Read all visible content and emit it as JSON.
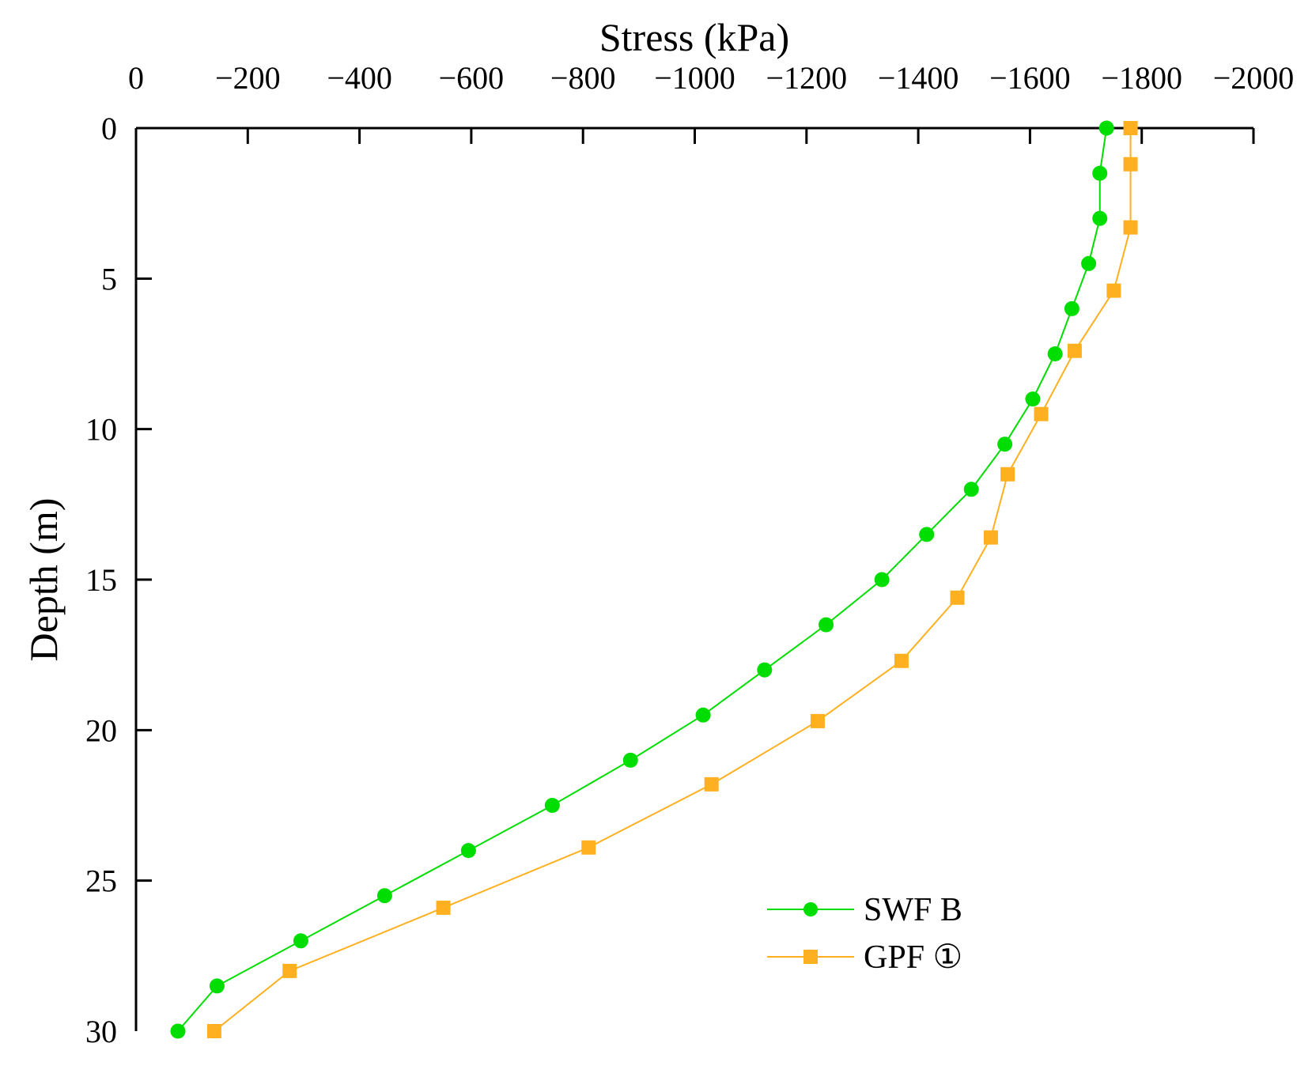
{
  "chart_data": {
    "type": "line",
    "title": "",
    "xlabel": "Stress (kPa)",
    "ylabel": "Depth (m)",
    "x_axis_position": "top",
    "y_axis_inverted": true,
    "xlim": [
      0,
      -2000
    ],
    "ylim": [
      0,
      30
    ],
    "xticks": [
      0,
      -200,
      -400,
      -600,
      -800,
      -1000,
      -1200,
      -1400,
      -1600,
      -1800,
      -2000
    ],
    "xtick_labels": [
      "0",
      "−200",
      "−400",
      "−600",
      "−800",
      "−1000",
      "−1200",
      "−1400",
      "−1600",
      "−1800",
      "−2000"
    ],
    "yticks": [
      0,
      5,
      10,
      15,
      20,
      25,
      30
    ],
    "ytick_labels": [
      "0",
      "5",
      "10",
      "15",
      "20",
      "25",
      "30"
    ],
    "grid": false,
    "legend_position": "bottom-right",
    "series": [
      {
        "name": "SWF B",
        "color": "#00dd00",
        "marker": "circle",
        "points": [
          {
            "x": -1737,
            "y": 0
          },
          {
            "x": -1725,
            "y": 1.5
          },
          {
            "x": -1725,
            "y": 3
          },
          {
            "x": -1705,
            "y": 4.5
          },
          {
            "x": -1675,
            "y": 6
          },
          {
            "x": -1645,
            "y": 7.5
          },
          {
            "x": -1605,
            "y": 9
          },
          {
            "x": -1555,
            "y": 10.5
          },
          {
            "x": -1495,
            "y": 12
          },
          {
            "x": -1415,
            "y": 13.5
          },
          {
            "x": -1335,
            "y": 15
          },
          {
            "x": -1235,
            "y": 16.5
          },
          {
            "x": -1125,
            "y": 18
          },
          {
            "x": -1015,
            "y": 19.5
          },
          {
            "x": -885,
            "y": 21
          },
          {
            "x": -745,
            "y": 22.5
          },
          {
            "x": -595,
            "y": 24
          },
          {
            "x": -445,
            "y": 25.5
          },
          {
            "x": -295,
            "y": 27
          },
          {
            "x": -145,
            "y": 28.5
          },
          {
            "x": -75,
            "y": 30
          }
        ]
      },
      {
        "name": "GPF ①",
        "color": "#ffb020",
        "marker": "square",
        "points": [
          {
            "x": -1780,
            "y": 0
          },
          {
            "x": -1780,
            "y": 1.2
          },
          {
            "x": -1780,
            "y": 3.3
          },
          {
            "x": -1750,
            "y": 5.4
          },
          {
            "x": -1680,
            "y": 7.4
          },
          {
            "x": -1620,
            "y": 9.5
          },
          {
            "x": -1560,
            "y": 11.5
          },
          {
            "x": -1530,
            "y": 13.6
          },
          {
            "x": -1470,
            "y": 15.6
          },
          {
            "x": -1370,
            "y": 17.7
          },
          {
            "x": -1220,
            "y": 19.7
          },
          {
            "x": -1030,
            "y": 21.8
          },
          {
            "x": -810,
            "y": 23.9
          },
          {
            "x": -550,
            "y": 25.9
          },
          {
            "x": -275,
            "y": 28
          },
          {
            "x": -140,
            "y": 30
          }
        ]
      }
    ]
  }
}
